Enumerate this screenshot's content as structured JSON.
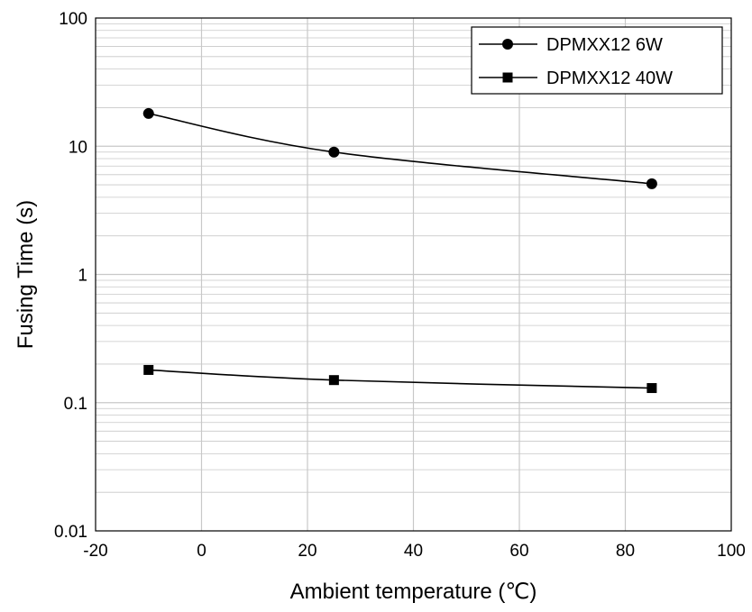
{
  "chart_data": {
    "type": "line",
    "xlabel": "Ambient temperature (℃)",
    "ylabel": "Fusing Time (s)",
    "xlim": [
      -20,
      100
    ],
    "ylim": [
      0.01,
      100
    ],
    "y_scale": "log",
    "x_ticks": [
      "-20",
      "0",
      "20",
      "40",
      "60",
      "80",
      "100"
    ],
    "y_ticks": [
      "0.01",
      "0.1",
      "1",
      "10",
      "100"
    ],
    "grid": true,
    "legend_position": "top-right",
    "series": [
      {
        "name": "DPMXX12 6W",
        "marker": "circle",
        "x": [
          -10,
          25,
          85
        ],
        "y": [
          18,
          9,
          5.1
        ]
      },
      {
        "name": "DPMXX12 40W",
        "marker": "square",
        "x": [
          -10,
          25,
          85
        ],
        "y": [
          0.18,
          0.15,
          0.13
        ]
      }
    ],
    "colors": {
      "line": "#000000",
      "grid": "#c8c8c8",
      "background": "#ffffff"
    }
  }
}
